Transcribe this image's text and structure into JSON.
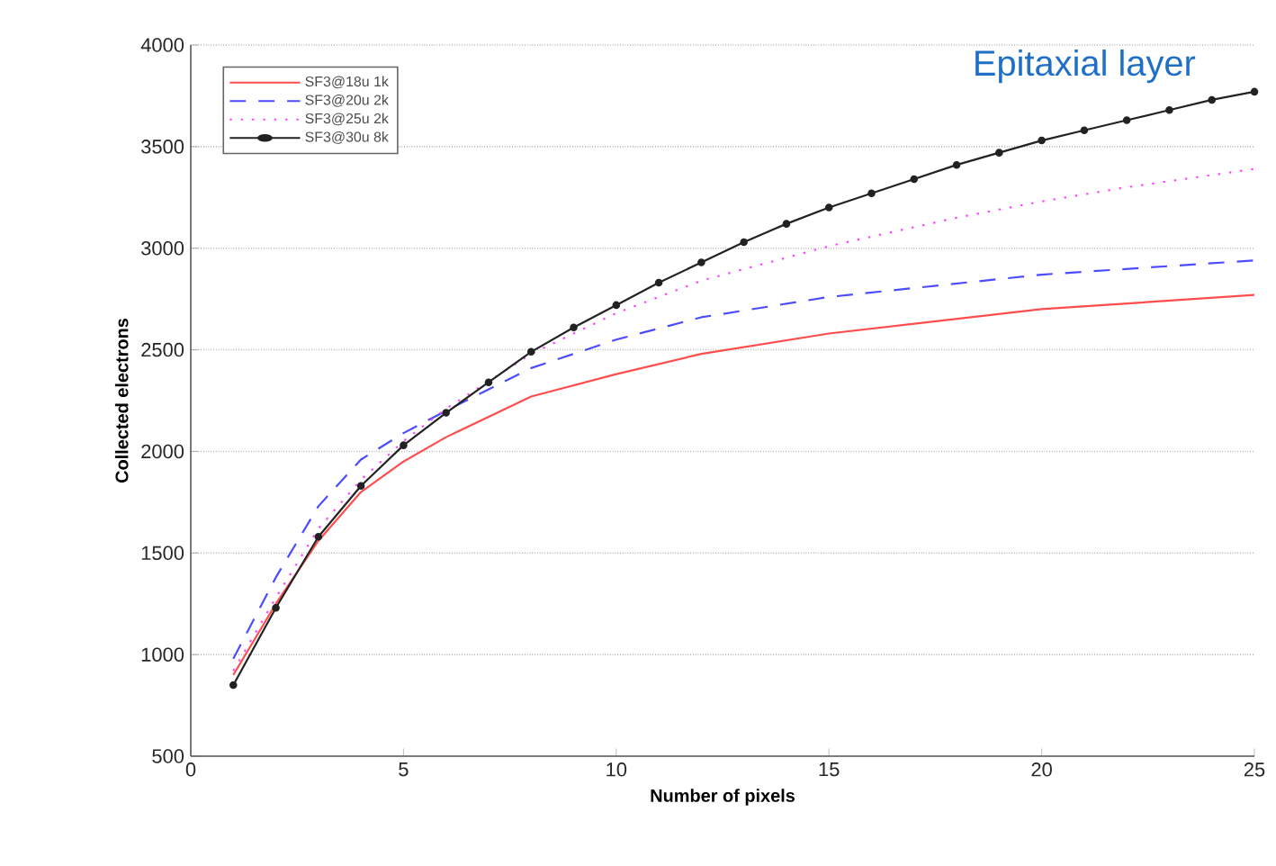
{
  "chart_data": {
    "type": "line",
    "title": "Epitaxial layer",
    "xlabel": "Number of pixels",
    "ylabel": "Collected electrons",
    "xlim": [
      0,
      25
    ],
    "xticks": [
      0,
      5,
      10,
      15,
      20,
      25
    ],
    "ylim": [
      500,
      4000
    ],
    "yticks": [
      500,
      1000,
      1500,
      2000,
      2500,
      3000,
      3500,
      4000
    ],
    "grid": "y",
    "legend": "top left",
    "series": [
      {
        "name": "SF3@18u 1k",
        "color": "#ff4d4d",
        "line_style": "solid",
        "marker": "none",
        "x": [
          1,
          2,
          3,
          4,
          5,
          6,
          7,
          8,
          10,
          12,
          15,
          20,
          25
        ],
        "values": [
          900,
          1250,
          1560,
          1800,
          1950,
          2070,
          2170,
          2270,
          2380,
          2480,
          2580,
          2700,
          2770
        ]
      },
      {
        "name": "SF3@20u 2k",
        "color": "#4c4cff",
        "line_style": "dashed",
        "marker": "none",
        "x": [
          1,
          2,
          3,
          4,
          5,
          6,
          8,
          10,
          12,
          15,
          20,
          25
        ],
        "values": [
          980,
          1380,
          1730,
          1960,
          2090,
          2200,
          2410,
          2550,
          2660,
          2760,
          2870,
          2940
        ]
      },
      {
        "name": "SF3@25u 2k",
        "color": "#ff44ff",
        "line_style": "dotted",
        "marker": "none",
        "x": [
          1,
          2,
          3,
          4,
          5,
          6,
          8,
          10,
          12,
          15,
          18,
          20,
          22,
          25
        ],
        "values": [
          920,
          1280,
          1620,
          1860,
          2050,
          2210,
          2480,
          2680,
          2840,
          3010,
          3150,
          3230,
          3300,
          3390
        ]
      },
      {
        "name": "SF3@30u 8k",
        "color": "#222222",
        "line_style": "solid",
        "marker": "circle",
        "x": [
          1,
          2,
          3,
          4,
          5,
          6,
          7,
          8,
          9,
          10,
          11,
          12,
          13,
          14,
          15,
          16,
          17,
          18,
          19,
          20,
          21,
          22,
          23,
          24,
          25
        ],
        "values": [
          850,
          1230,
          1580,
          1830,
          2030,
          2190,
          2340,
          2490,
          2610,
          2720,
          2830,
          2930,
          3030,
          3120,
          3200,
          3270,
          3340,
          3410,
          3470,
          3530,
          3580,
          3630,
          3680,
          3730,
          3770
        ]
      }
    ]
  }
}
